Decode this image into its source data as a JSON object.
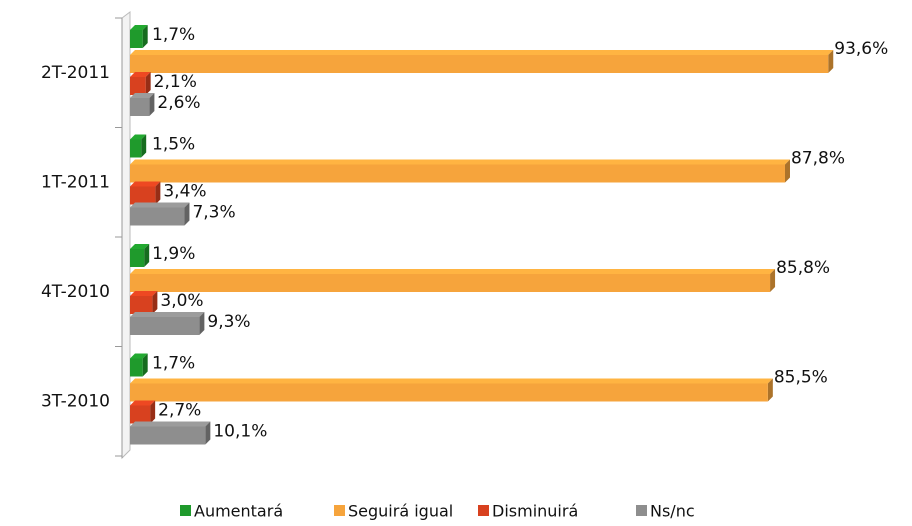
{
  "chart_data": {
    "type": "bar",
    "orientation": "horizontal",
    "categories": [
      "2T-2011",
      "1T-2011",
      "4T-2010",
      "3T-2010"
    ],
    "xlim": [
      0,
      100
    ],
    "legend": "bottom",
    "series": [
      {
        "name": "Aumentará",
        "color": "#1f9a2c",
        "values": [
          1.7,
          1.5,
          1.9,
          1.7
        ],
        "value_labels": [
          "1,7%",
          "1,5%",
          "1,9%",
          "1,7%"
        ]
      },
      {
        "name": "Seguirá igual",
        "color": "#f6a43c",
        "values": [
          93.6,
          87.8,
          85.8,
          85.5
        ],
        "value_labels": [
          "93,6%",
          "87,8%",
          "85,8%",
          "85,5%"
        ]
      },
      {
        "name": "Disminuirá",
        "color": "#d8411f",
        "values": [
          2.1,
          3.4,
          3.0,
          2.7
        ],
        "value_labels": [
          "2,1%",
          "3,4%",
          "3,0%",
          "2,7%"
        ]
      },
      {
        "name": "Ns/nc",
        "color": "#8e8e8e",
        "values": [
          2.6,
          7.3,
          9.3,
          10.1
        ],
        "value_labels": [
          "2,6%",
          "7,3%",
          "9,3%",
          "10,1%"
        ]
      }
    ]
  }
}
